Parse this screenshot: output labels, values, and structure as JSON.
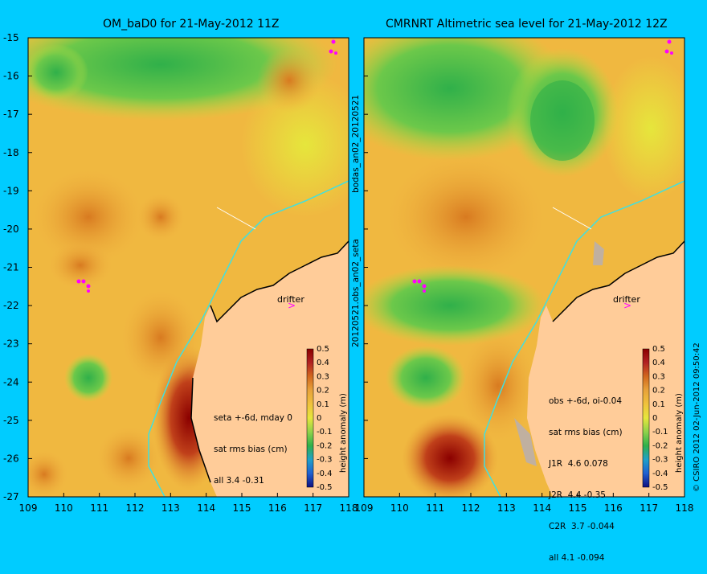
{
  "left": {
    "title": "OM_baD0 for 21-May-2012 11Z",
    "annotation": [
      "seta +-6d, mday 0",
      "sat rms bias (cm)",
      "all 3.4 -0.31"
    ],
    "drifter_label": "drifter"
  },
  "right": {
    "title": "CMRNRT Altimetric sea level  for 21-May-2012 12Z",
    "annotation": [
      "obs +-6d, oi-0.04",
      "sat rms bias (cm)",
      "J1R  4.6 0.078",
      "J2R  4.4 -0.35",
      "C2R  3.7 -0.044",
      "all 4.1 -0.094"
    ],
    "drifter_label": "drifter"
  },
  "side_labels": {
    "middle_top": "bodas_an02_20120521",
    "middle_bottom": "20120521.obs_an02_seta",
    "right_edge": "© CSIRO 2012   02-Jun-2012 09:50:42",
    "colorbar_label": "height anomaly (m)"
  },
  "axes": {
    "lat_ticks": [
      "-15",
      "-16",
      "-17",
      "-18",
      "-19",
      "-20",
      "-21",
      "-22",
      "-23",
      "-24",
      "-25",
      "-26",
      "-27"
    ],
    "lon_ticks": [
      "109",
      "110",
      "111",
      "112",
      "113",
      "114",
      "115",
      "116",
      "117",
      "118"
    ],
    "lat_range": [
      -27,
      -15
    ],
    "lon_range": [
      109,
      118
    ]
  },
  "colorbar": {
    "ticks": [
      "0.5",
      "0.4",
      "0.3",
      "0.2",
      "0.1",
      "0",
      "-0.1",
      "-0.2",
      "-0.3",
      "-0.4",
      "-0.5"
    ],
    "colors": [
      "#8b0000",
      "#b22222",
      "#d2691e",
      "#e8a33a",
      "#f0c23c",
      "#e6e63c",
      "#8fd24a",
      "#30b04a",
      "#20a0c8",
      "#2060d0",
      "#101080"
    ]
  },
  "colors": {
    "background": "#00ccff",
    "land": "#ffcc99",
    "shelf_line": "#40e0e0"
  }
}
